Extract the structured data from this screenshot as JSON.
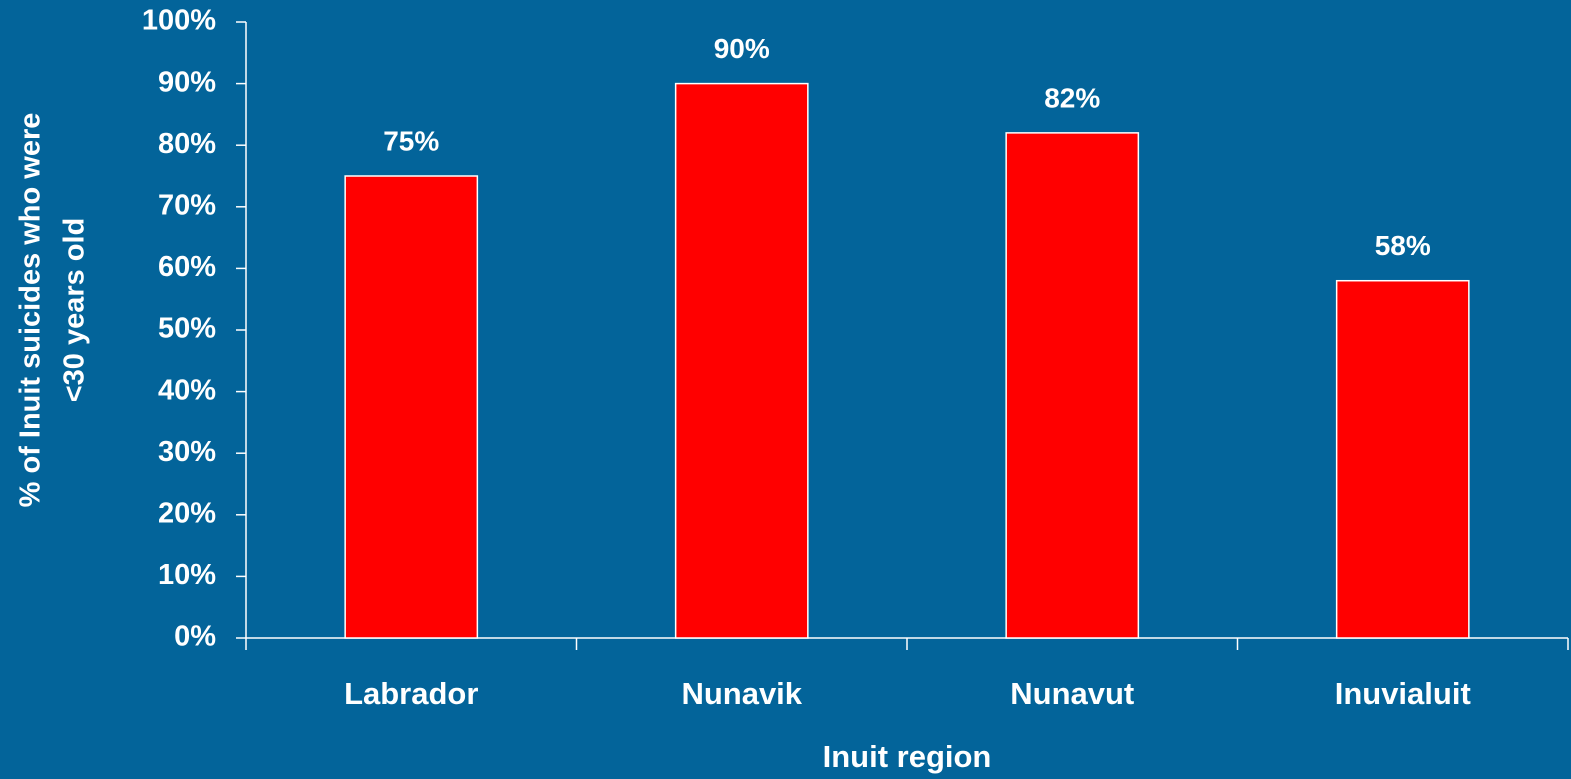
{
  "chart_data": {
    "type": "bar",
    "categories": [
      "Labrador",
      "Nunavik",
      "Nunavut",
      "Inuvialuit"
    ],
    "values": [
      75,
      90,
      82,
      58
    ],
    "value_labels": [
      "75%",
      "90%",
      "82%",
      "58%"
    ],
    "color": "#ff0000",
    "x_label": "Inuit region",
    "y_label": [
      "% of Inuit suicides who were",
      "<30 years old"
    ],
    "ylim": [
      0,
      100
    ],
    "yticks": [
      {
        "value": 0,
        "label": "0%"
      },
      {
        "value": 10,
        "label": "10%"
      },
      {
        "value": 20,
        "label": "20%"
      },
      {
        "value": 30,
        "label": "30%"
      },
      {
        "value": 40,
        "label": "40%"
      },
      {
        "value": 50,
        "label": "50%"
      },
      {
        "value": 60,
        "label": "60%"
      },
      {
        "value": 70,
        "label": "70%"
      },
      {
        "value": 80,
        "label": "80%"
      },
      {
        "value": 90,
        "label": "90%"
      },
      {
        "value": 100,
        "label": "100%"
      }
    ],
    "grid": false
  }
}
